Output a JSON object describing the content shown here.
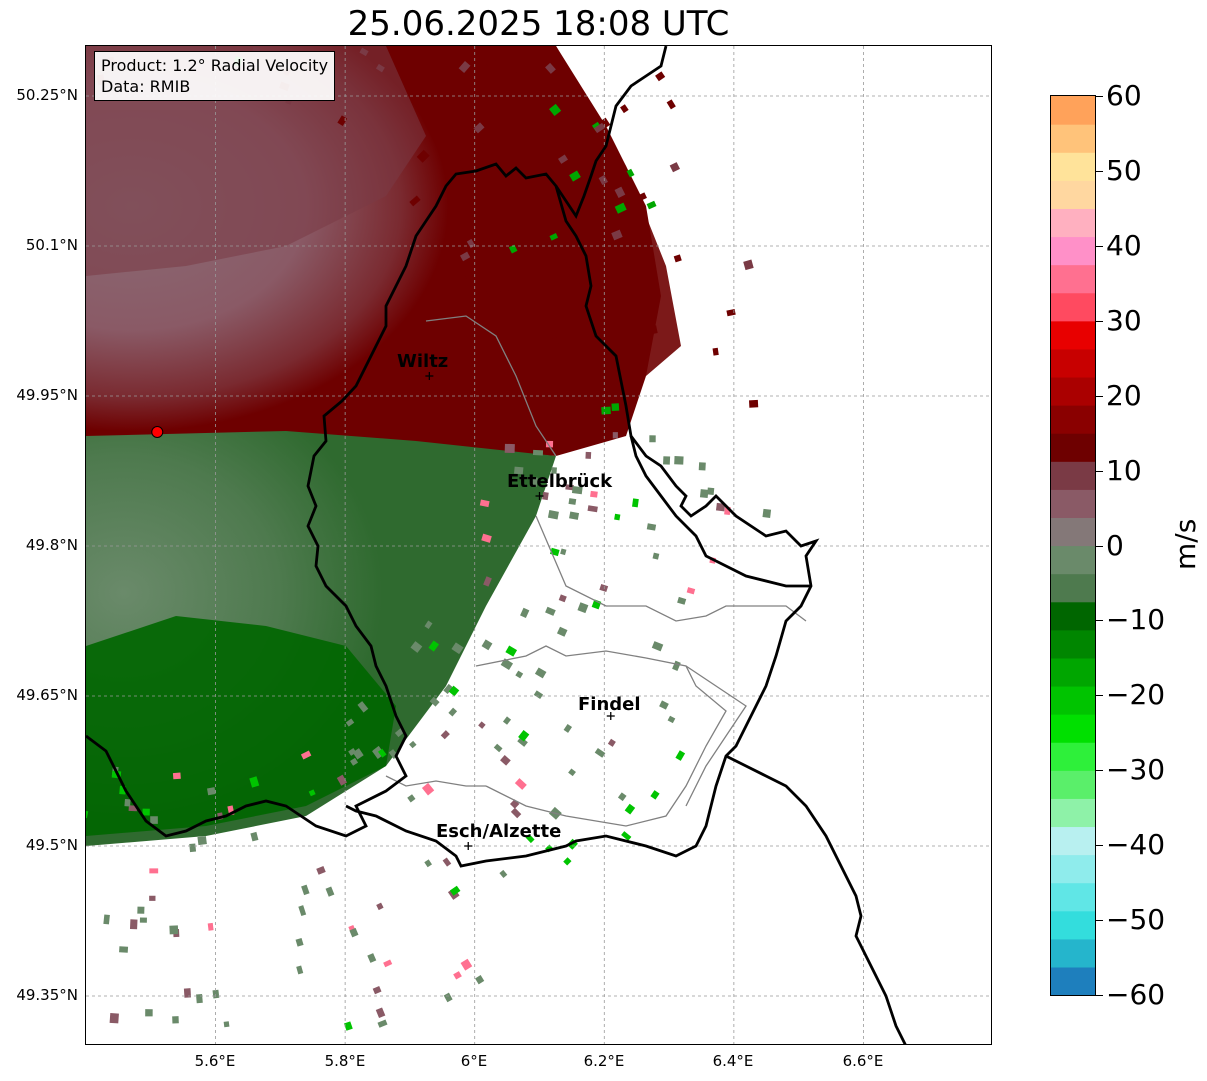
{
  "title": "25.06.2025 18:08 UTC",
  "info": {
    "product": "Product: 1.2° Radial Velocity",
    "data": "Data: RMIB"
  },
  "axes": {
    "lon_ticks": [
      "5.6°E",
      "5.8°E",
      "6°E",
      "6.2°E",
      "6.4°E",
      "6.6°E"
    ],
    "lat_ticks": [
      "50.25°N",
      "50.1°N",
      "49.95°N",
      "49.8°N",
      "49.65°N",
      "49.5°N",
      "49.35°N"
    ],
    "lon_range": [
      5.4,
      6.8
    ],
    "lat_range": [
      49.3,
      50.3
    ]
  },
  "cities": [
    {
      "name": "Wiltz",
      "lon": 5.93,
      "lat": 49.97
    },
    {
      "name": "Ettelbrück",
      "lon": 6.1,
      "lat": 49.85
    },
    {
      "name": "Findel",
      "lon": 6.21,
      "lat": 49.63
    },
    {
      "name": "Esch/Alzette",
      "lon": 5.99,
      "lat": 49.5
    }
  ],
  "radar_site": {
    "lon": 5.51,
    "lat": 49.914
  },
  "colorbar": {
    "label": "m/s",
    "ticks": [
      "60",
      "50",
      "40",
      "30",
      "20",
      "10",
      "0",
      "−10",
      "−20",
      "−30",
      "−40",
      "−50",
      "−60"
    ],
    "min": -60,
    "max": 60,
    "colors": [
      "#1e7fbd",
      "#25b5cc",
      "#33dddd",
      "#60e6e6",
      "#8fecec",
      "#b8f0f0",
      "#8ef2a8",
      "#5aef6a",
      "#2ef03a",
      "#00e000",
      "#00c400",
      "#00a600",
      "#008600",
      "#006600",
      "#4e7a4e",
      "#6a8a6a",
      "#847878",
      "#8a5a66",
      "#7a3a45",
      "#6e0000",
      "#8a0000",
      "#aa0000",
      "#c80000",
      "#e80000",
      "#ff4a60",
      "#ff7090",
      "#ff90c8",
      "#ffb0c0",
      "#ffd7a0",
      "#ffe39a",
      "#ffc37a",
      "#ffa25a"
    ]
  }
}
